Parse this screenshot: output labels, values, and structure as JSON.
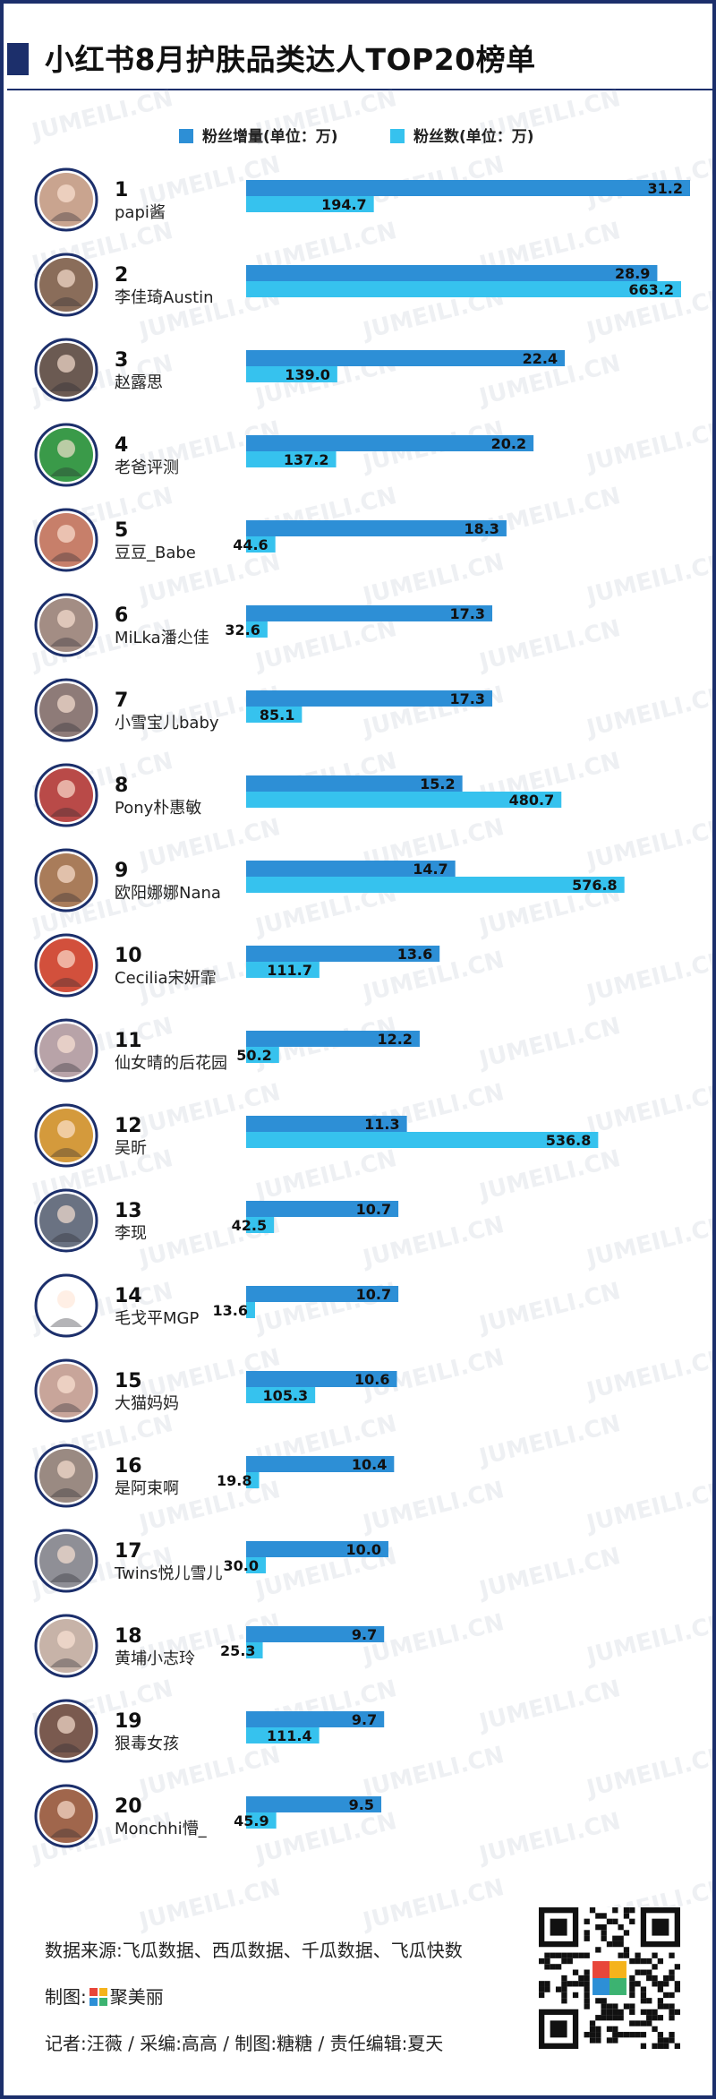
{
  "title": "小红书8月护肤品类达人TOP20榜单",
  "watermark": "JUMEILI.CN",
  "legend": [
    {
      "label": "粉丝增量(单位：万)",
      "color": "#2d8fd6"
    },
    {
      "label": "粉丝数(单位：万)",
      "color": "#36c2ee"
    }
  ],
  "chart_data": {
    "type": "bar",
    "orientation": "horizontal",
    "categories": [
      {
        "rank": "1",
        "name": "papi酱"
      },
      {
        "rank": "2",
        "name": "李佳琦Austin"
      },
      {
        "rank": "3",
        "name": "赵露思"
      },
      {
        "rank": "4",
        "name": "老爸评测"
      },
      {
        "rank": "5",
        "name": "豆豆_Babe"
      },
      {
        "rank": "6",
        "name": "MiLka潘尐佳"
      },
      {
        "rank": "7",
        "name": "小雪宝儿baby"
      },
      {
        "rank": "8",
        "name": "Pony朴惠敏"
      },
      {
        "rank": "9",
        "name": "欧阳娜娜Nana"
      },
      {
        "rank": "10",
        "name": "Cecilia宋妍霏"
      },
      {
        "rank": "11",
        "name": "仙女晴的后花园"
      },
      {
        "rank": "12",
        "name": "吴昕"
      },
      {
        "rank": "13",
        "name": "李现"
      },
      {
        "rank": "14",
        "name": "毛戈平MGP"
      },
      {
        "rank": "15",
        "name": "大猫妈妈"
      },
      {
        "rank": "16",
        "name": "是阿束啊"
      },
      {
        "rank": "17",
        "name": "Twins悦儿雪儿"
      },
      {
        "rank": "18",
        "name": "黄埔小志玲"
      },
      {
        "rank": "19",
        "name": "狠毒女孩"
      },
      {
        "rank": "20",
        "name": "Monchhi懵_"
      }
    ],
    "series": [
      {
        "name": "粉丝增量(单位：万)",
        "color": "#2d8fd6",
        "values": [
          31.2,
          28.9,
          22.4,
          20.2,
          18.3,
          17.3,
          17.3,
          15.2,
          14.7,
          13.6,
          12.2,
          11.3,
          10.7,
          10.7,
          10.6,
          10.4,
          10.0,
          9.7,
          9.7,
          9.5
        ],
        "labels": [
          "31.2",
          "28.9",
          "22.4",
          "20.2",
          "18.3",
          "17.3",
          "17.3",
          "15.2",
          "14.7",
          "13.6",
          "12.2",
          "11.3",
          "10.7",
          "10.7",
          "10.6",
          "10.4",
          "10.0",
          "9.7",
          "9.7",
          "9.5"
        ]
      },
      {
        "name": "粉丝数(单位：万)",
        "color": "#36c2ee",
        "values": [
          194.7,
          663.2,
          139.0,
          137.2,
          44.6,
          32.6,
          85.1,
          480.7,
          576.8,
          111.7,
          50.2,
          536.8,
          42.5,
          13.6,
          105.3,
          19.8,
          30.0,
          25.3,
          111.4,
          45.9
        ],
        "labels": [
          "194.7",
          "663.2",
          "139.0",
          "137.2",
          "44.6",
          "32.6",
          "85.1",
          "480.7",
          "576.8",
          "111.7",
          "50.2",
          "536.8",
          "42.5",
          "13.6",
          "105.3",
          "19.8",
          "30.0",
          "25.3",
          "111.4",
          "45.9"
        ]
      }
    ],
    "grid": false,
    "legend_position": "top"
  },
  "footer": {
    "source": "数据来源:飞瓜数据、西瓜数据、千瓜数据、飞瓜快数",
    "maker_prefix": "制图:",
    "maker_brand": "聚美丽",
    "credits": "记者:汪薇 / 采编:高高 / 制图:糖糖 / 责任编辑:夏天"
  }
}
